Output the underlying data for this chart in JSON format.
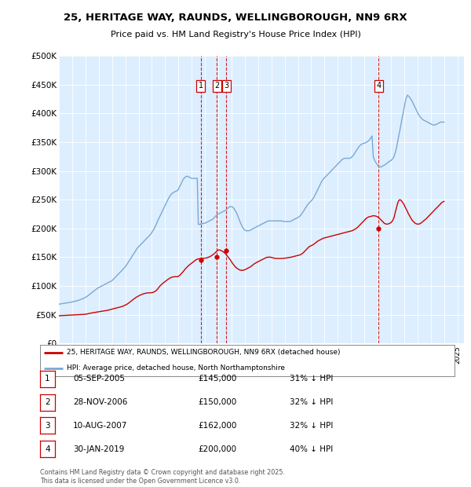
{
  "title": "25, HERITAGE WAY, RAUNDS, WELLINGBOROUGH, NN9 6RX",
  "subtitle": "Price paid vs. HM Land Registry's House Price Index (HPI)",
  "plot_bg_color": "#ddeeff",
  "hpi_color": "#7aa8d4",
  "price_color": "#cc0000",
  "ylim": [
    0,
    500000
  ],
  "yticks": [
    0,
    50000,
    100000,
    150000,
    200000,
    250000,
    300000,
    350000,
    400000,
    450000,
    500000
  ],
  "ytick_labels": [
    "£0",
    "£50K",
    "£100K",
    "£150K",
    "£200K",
    "£250K",
    "£300K",
    "£350K",
    "£400K",
    "£450K",
    "£500K"
  ],
  "xlim_start": 1995.0,
  "xlim_end": 2025.5,
  "sale_dates": [
    2005.68,
    2006.91,
    2007.61,
    2019.08
  ],
  "sale_prices": [
    145000,
    150000,
    162000,
    200000
  ],
  "sale_labels": [
    "1",
    "2",
    "3",
    "4"
  ],
  "vline_color": "#cc0000",
  "legend_house_label": "25, HERITAGE WAY, RAUNDS, WELLINGBOROUGH, NN9 6RX (detached house)",
  "legend_hpi_label": "HPI: Average price, detached house, North Northamptonshire",
  "table_entries": [
    {
      "num": "1",
      "date": "05-SEP-2005",
      "price": "£145,000",
      "pct": "31% ↓ HPI"
    },
    {
      "num": "2",
      "date": "28-NOV-2006",
      "price": "£150,000",
      "pct": "32% ↓ HPI"
    },
    {
      "num": "3",
      "date": "10-AUG-2007",
      "price": "£162,000",
      "pct": "32% ↓ HPI"
    },
    {
      "num": "4",
      "date": "30-JAN-2019",
      "price": "£200,000",
      "pct": "40% ↓ HPI"
    }
  ],
  "footer": "Contains HM Land Registry data © Crown copyright and database right 2025.\nThis data is licensed under the Open Government Licence v3.0.",
  "hpi_x": [
    1995.0,
    1995.08,
    1995.17,
    1995.25,
    1995.33,
    1995.42,
    1995.5,
    1995.58,
    1995.67,
    1995.75,
    1995.83,
    1995.92,
    1996.0,
    1996.08,
    1996.17,
    1996.25,
    1996.33,
    1996.42,
    1996.5,
    1996.58,
    1996.67,
    1996.75,
    1996.83,
    1996.92,
    1997.0,
    1997.08,
    1997.17,
    1997.25,
    1997.33,
    1997.42,
    1997.5,
    1997.58,
    1997.67,
    1997.75,
    1997.83,
    1997.92,
    1998.0,
    1998.08,
    1998.17,
    1998.25,
    1998.33,
    1998.42,
    1998.5,
    1998.58,
    1998.67,
    1998.75,
    1998.83,
    1998.92,
    1999.0,
    1999.08,
    1999.17,
    1999.25,
    1999.33,
    1999.42,
    1999.5,
    1999.58,
    1999.67,
    1999.75,
    1999.83,
    1999.92,
    2000.0,
    2000.08,
    2000.17,
    2000.25,
    2000.33,
    2000.42,
    2000.5,
    2000.58,
    2000.67,
    2000.75,
    2000.83,
    2000.92,
    2001.0,
    2001.08,
    2001.17,
    2001.25,
    2001.33,
    2001.42,
    2001.5,
    2001.58,
    2001.67,
    2001.75,
    2001.83,
    2001.92,
    2002.0,
    2002.08,
    2002.17,
    2002.25,
    2002.33,
    2002.42,
    2002.5,
    2002.58,
    2002.67,
    2002.75,
    2002.83,
    2002.92,
    2003.0,
    2003.08,
    2003.17,
    2003.25,
    2003.33,
    2003.42,
    2003.5,
    2003.58,
    2003.67,
    2003.75,
    2003.83,
    2003.92,
    2004.0,
    2004.08,
    2004.17,
    2004.25,
    2004.33,
    2004.42,
    2004.5,
    2004.58,
    2004.67,
    2004.75,
    2004.83,
    2004.92,
    2005.0,
    2005.08,
    2005.17,
    2005.25,
    2005.33,
    2005.42,
    2005.5,
    2005.58,
    2005.67,
    2005.75,
    2005.83,
    2005.92,
    2006.0,
    2006.08,
    2006.17,
    2006.25,
    2006.33,
    2006.42,
    2006.5,
    2006.58,
    2006.67,
    2006.75,
    2006.83,
    2006.92,
    2007.0,
    2007.08,
    2007.17,
    2007.25,
    2007.33,
    2007.42,
    2007.5,
    2007.58,
    2007.67,
    2007.75,
    2007.83,
    2007.92,
    2008.0,
    2008.08,
    2008.17,
    2008.25,
    2008.33,
    2008.42,
    2008.5,
    2008.58,
    2008.67,
    2008.75,
    2008.83,
    2008.92,
    2009.0,
    2009.08,
    2009.17,
    2009.25,
    2009.33,
    2009.42,
    2009.5,
    2009.58,
    2009.67,
    2009.75,
    2009.83,
    2009.92,
    2010.0,
    2010.08,
    2010.17,
    2010.25,
    2010.33,
    2010.42,
    2010.5,
    2010.58,
    2010.67,
    2010.75,
    2010.83,
    2010.92,
    2011.0,
    2011.08,
    2011.17,
    2011.25,
    2011.33,
    2011.42,
    2011.5,
    2011.58,
    2011.67,
    2011.75,
    2011.83,
    2011.92,
    2012.0,
    2012.08,
    2012.17,
    2012.25,
    2012.33,
    2012.42,
    2012.5,
    2012.58,
    2012.67,
    2012.75,
    2012.83,
    2012.92,
    2013.0,
    2013.08,
    2013.17,
    2013.25,
    2013.33,
    2013.42,
    2013.5,
    2013.58,
    2013.67,
    2013.75,
    2013.83,
    2013.92,
    2014.0,
    2014.08,
    2014.17,
    2014.25,
    2014.33,
    2014.42,
    2014.5,
    2014.58,
    2014.67,
    2014.75,
    2014.83,
    2014.92,
    2015.0,
    2015.08,
    2015.17,
    2015.25,
    2015.33,
    2015.42,
    2015.5,
    2015.58,
    2015.67,
    2015.75,
    2015.83,
    2015.92,
    2016.0,
    2016.08,
    2016.17,
    2016.25,
    2016.33,
    2016.42,
    2016.5,
    2016.58,
    2016.67,
    2016.75,
    2016.83,
    2016.92,
    2017.0,
    2017.08,
    2017.17,
    2017.25,
    2017.33,
    2017.42,
    2017.5,
    2017.58,
    2017.67,
    2017.75,
    2017.83,
    2017.92,
    2018.0,
    2018.08,
    2018.17,
    2018.25,
    2018.33,
    2018.42,
    2018.5,
    2018.58,
    2018.67,
    2018.75,
    2018.83,
    2018.92,
    2019.0,
    2019.08,
    2019.17,
    2019.25,
    2019.33,
    2019.42,
    2019.5,
    2019.58,
    2019.67,
    2019.75,
    2019.83,
    2019.92,
    2020.0,
    2020.08,
    2020.17,
    2020.25,
    2020.33,
    2020.42,
    2020.5,
    2020.58,
    2020.67,
    2020.75,
    2020.83,
    2020.92,
    2021.0,
    2021.08,
    2021.17,
    2021.25,
    2021.33,
    2021.42,
    2021.5,
    2021.58,
    2021.67,
    2021.75,
    2021.83,
    2021.92,
    2022.0,
    2022.08,
    2022.17,
    2022.25,
    2022.33,
    2022.42,
    2022.5,
    2022.58,
    2022.67,
    2022.75,
    2022.83,
    2022.92,
    2023.0,
    2023.08,
    2023.17,
    2023.25,
    2023.33,
    2023.42,
    2023.5,
    2023.58,
    2023.67,
    2023.75,
    2023.83,
    2023.92,
    2024.0,
    2024.08,
    2024.17,
    2024.25,
    2024.33,
    2024.42,
    2024.5,
    2024.58,
    2024.67,
    2024.75,
    2024.83,
    2024.92,
    2025.0
  ],
  "hpi_y": [
    68000,
    68500,
    68800,
    69000,
    69200,
    69500,
    70000,
    70300,
    70700,
    71000,
    71300,
    71600,
    72000,
    72500,
    73000,
    73500,
    74000,
    74500,
    75000,
    75800,
    76500,
    77200,
    78000,
    79000,
    80000,
    81000,
    82500,
    84000,
    85500,
    87000,
    88500,
    90000,
    91500,
    93000,
    94500,
    96000,
    97000,
    98000,
    99000,
    100000,
    101000,
    102000,
    103000,
    104000,
    105000,
    106000,
    107000,
    108000,
    109000,
    111000,
    113000,
    115000,
    117000,
    119000,
    121000,
    123000,
    125000,
    127000,
    129000,
    131000,
    133000,
    136000,
    139000,
    142000,
    145000,
    148000,
    151000,
    154000,
    157000,
    160000,
    163000,
    166000,
    168000,
    170000,
    172000,
    174000,
    176000,
    178000,
    180000,
    182000,
    184000,
    186000,
    188000,
    190000,
    193000,
    196000,
    199000,
    203000,
    207000,
    212000,
    216000,
    220000,
    224000,
    228000,
    232000,
    236000,
    240000,
    244000,
    248000,
    252000,
    255000,
    258000,
    260000,
    262000,
    263000,
    264000,
    265000,
    266000,
    268000,
    272000,
    276000,
    280000,
    284000,
    287000,
    289000,
    290000,
    291000,
    290000,
    289000,
    288000,
    287000,
    287000,
    287000,
    287000,
    287000,
    287000,
    207000,
    207000,
    207500,
    208000,
    208500,
    209000,
    209000,
    210000,
    211000,
    212000,
    213000,
    214000,
    215000,
    216000,
    218000,
    220000,
    222000,
    224000,
    225000,
    226000,
    227000,
    228000,
    229000,
    230000,
    231000,
    232000,
    234000,
    236000,
    237000,
    238000,
    238000,
    237000,
    235000,
    232000,
    229000,
    225000,
    220000,
    215000,
    210000,
    206000,
    202000,
    199000,
    197000,
    196000,
    196000,
    196000,
    196000,
    197000,
    198000,
    199000,
    200000,
    201000,
    202000,
    203000,
    204000,
    205000,
    206000,
    207000,
    208000,
    209000,
    210000,
    211000,
    212000,
    213000,
    213000,
    213000,
    213000,
    213000,
    213000,
    213000,
    213000,
    213000,
    213000,
    213000,
    213000,
    213000,
    213000,
    212000,
    212000,
    212000,
    212000,
    212000,
    212000,
    212000,
    213000,
    214000,
    215000,
    216000,
    217000,
    218000,
    219000,
    220000,
    222000,
    224000,
    227000,
    230000,
    233000,
    236000,
    239000,
    242000,
    244000,
    246000,
    248000,
    250000,
    253000,
    256000,
    260000,
    264000,
    268000,
    272000,
    276000,
    280000,
    283000,
    286000,
    288000,
    290000,
    292000,
    294000,
    296000,
    298000,
    300000,
    302000,
    304000,
    306000,
    308000,
    310000,
    312000,
    314000,
    316000,
    318000,
    320000,
    321000,
    322000,
    322000,
    322000,
    322000,
    322000,
    322000,
    323000,
    325000,
    327000,
    330000,
    333000,
    336000,
    339000,
    342000,
    344000,
    346000,
    347000,
    348000,
    348000,
    349000,
    350000,
    351000,
    353000,
    355000,
    358000,
    361000,
    325000,
    320000,
    316000,
    313000,
    310000,
    308000,
    307000,
    307000,
    308000,
    309000,
    310000,
    311000,
    313000,
    314000,
    316000,
    317000,
    318000,
    320000,
    322000,
    326000,
    332000,
    340000,
    350000,
    360000,
    370000,
    380000,
    390000,
    400000,
    410000,
    420000,
    428000,
    432000,
    430000,
    428000,
    425000,
    422000,
    418000,
    414000,
    410000,
    406000,
    402000,
    398000,
    395000,
    393000,
    391000,
    389000,
    388000,
    387000,
    386000,
    385000,
    384000,
    383000,
    382000,
    381000,
    380000,
    380000,
    380000,
    381000,
    382000,
    383000,
    384000,
    385000,
    385000,
    385000,
    385000,
    386000,
    387000,
    388000,
    389000,
    390000,
    391000,
    392000,
    393000,
    394000,
    395000,
    395000,
    395000
  ],
  "price_y": [
    48000,
    48100,
    48200,
    48300,
    48400,
    48500,
    48600,
    48700,
    48800,
    48900,
    49000,
    49100,
    49200,
    49300,
    49400,
    49500,
    49600,
    49700,
    49800,
    49900,
    50000,
    50100,
    50200,
    50400,
    50600,
    51000,
    51400,
    51800,
    52200,
    52600,
    53000,
    53300,
    53600,
    53900,
    54200,
    54500,
    54800,
    55100,
    55400,
    55700,
    56000,
    56300,
    56600,
    57000,
    57500,
    58000,
    58500,
    59000,
    59500,
    60000,
    60500,
    61000,
    61500,
    62000,
    62500,
    63000,
    63500,
    64000,
    64800,
    65600,
    66500,
    67500,
    68700,
    70000,
    71500,
    73000,
    74500,
    76000,
    77500,
    79000,
    80200,
    81400,
    82500,
    83500,
    84400,
    85200,
    85900,
    86500,
    87000,
    87400,
    87700,
    87900,
    88000,
    88000,
    88200,
    88700,
    89500,
    90500,
    92000,
    94000,
    96500,
    99000,
    101000,
    103000,
    104500,
    106000,
    107500,
    109000,
    110500,
    112000,
    113200,
    114300,
    115000,
    115500,
    115800,
    116000,
    116000,
    116000,
    116500,
    118000,
    120000,
    122000,
    124000,
    126500,
    129000,
    131000,
    133000,
    135000,
    136500,
    138000,
    139500,
    141000,
    142500,
    144000,
    145500,
    146500,
    147000,
    147200,
    147400,
    147600,
    147800,
    148000,
    148200,
    148500,
    149000,
    149700,
    150500,
    151500,
    152500,
    154000,
    155500,
    157000,
    159000,
    161000,
    162500,
    162500,
    162000,
    161000,
    160000,
    158500,
    157000,
    155000,
    152500,
    150000,
    147500,
    145000,
    142000,
    139000,
    136500,
    134000,
    132000,
    130500,
    129000,
    128000,
    127500,
    127000,
    127000,
    127500,
    128000,
    129000,
    130000,
    131000,
    132000,
    133000,
    134500,
    136000,
    137500,
    139000,
    140000,
    141000,
    142000,
    143000,
    144000,
    145000,
    146000,
    147000,
    148000,
    149000,
    149500,
    150000,
    150000,
    150000,
    149500,
    149000,
    148500,
    148000,
    147800,
    147700,
    147600,
    147600,
    147600,
    147700,
    147800,
    148000,
    148200,
    148500,
    148700,
    149000,
    149300,
    149600,
    150000,
    150500,
    151000,
    151500,
    152000,
    152500,
    153000,
    153500,
    154000,
    155000,
    156500,
    158000,
    160000,
    162000,
    164000,
    166000,
    168000,
    169000,
    170000,
    171000,
    172000,
    173500,
    175000,
    176500,
    178000,
    179000,
    180000,
    181000,
    182000,
    183000,
    183500,
    184000,
    184500,
    185000,
    185500,
    186000,
    186500,
    187000,
    187500,
    188000,
    188500,
    189000,
    189500,
    190000,
    190500,
    191000,
    191500,
    192000,
    192500,
    193000,
    193500,
    194000,
    194500,
    195000,
    195500,
    196000,
    197000,
    198000,
    199000,
    200500,
    202000,
    204000,
    206000,
    208000,
    210000,
    212000,
    214000,
    216000,
    218000,
    219000,
    220000,
    220500,
    221000,
    221500,
    222000,
    222000,
    221500,
    221000,
    220000,
    218500,
    217000,
    215000,
    213000,
    211000,
    209000,
    208000,
    207500,
    207500,
    208000,
    209000,
    210000,
    212000,
    215000,
    220000,
    228000,
    236000,
    243000,
    248000,
    250000,
    249000,
    247000,
    244000,
    241000,
    237000,
    233000,
    229000,
    225000,
    221500,
    218000,
    215000,
    212500,
    210500,
    209000,
    208000,
    207500,
    207500,
    208000,
    209000,
    210500,
    212000,
    213500,
    215000,
    217000,
    219000,
    221000,
    223000,
    225000,
    227000,
    229000,
    231000,
    233000,
    235000,
    237000,
    239000,
    241000,
    243000,
    245000,
    246000,
    247000
  ]
}
